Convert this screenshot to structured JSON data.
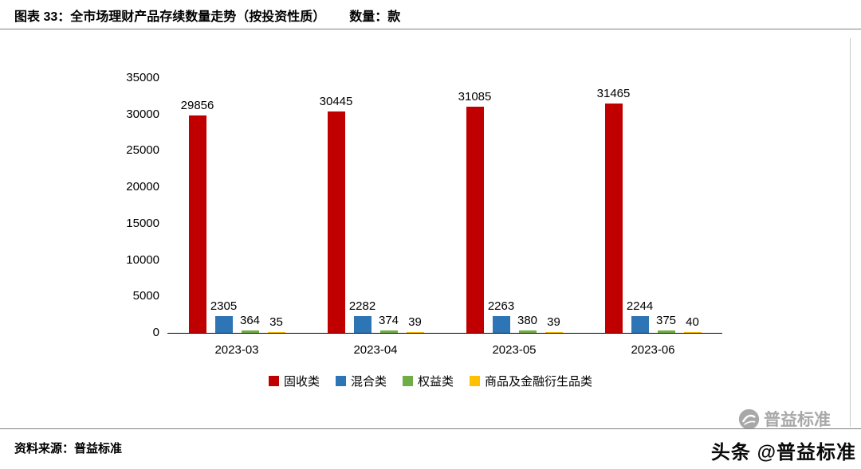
{
  "header": {
    "title": "图表 33：全市场理财产品存续数量走势（按投资性质）",
    "unit": "数量：款"
  },
  "chart_data": {
    "type": "bar",
    "categories": [
      "2023-03",
      "2023-04",
      "2023-05",
      "2023-06"
    ],
    "series": [
      {
        "name": "固收类",
        "color": "#C00000",
        "values": [
          29856,
          30445,
          31085,
          31465
        ]
      },
      {
        "name": "混合类",
        "color": "#2E75B6",
        "values": [
          2305,
          2282,
          2263,
          2244
        ]
      },
      {
        "name": "权益类",
        "color": "#70AD47",
        "values": [
          364,
          374,
          380,
          375
        ]
      },
      {
        "name": "商品及金融衍生品类",
        "color": "#FFC000",
        "values": [
          35,
          39,
          39,
          40
        ]
      }
    ],
    "title": "",
    "xlabel": "",
    "ylabel": "",
    "ylim": [
      0,
      35000
    ],
    "ytick_step": 5000,
    "grid": false,
    "legend_position": "bottom",
    "data_labels": true
  },
  "footer": {
    "source": "资料来源：普益标准"
  },
  "watermark": {
    "overlay": "头条 @普益标准",
    "brand": "普益标准"
  }
}
